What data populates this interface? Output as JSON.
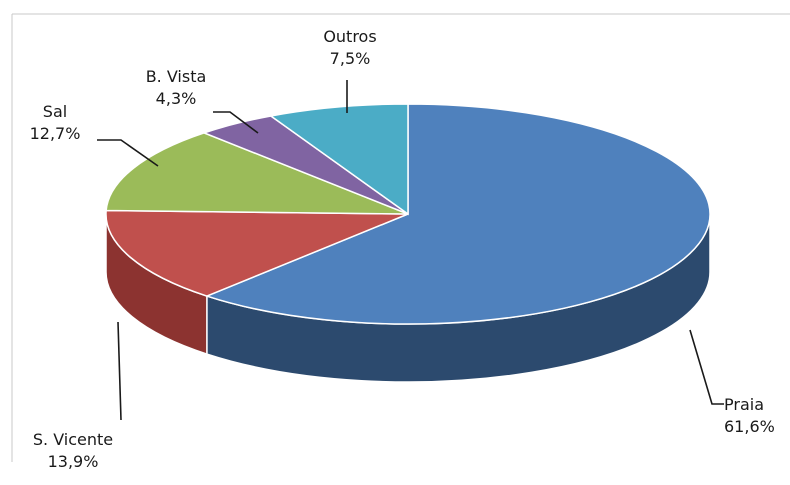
{
  "chart_data": {
    "type": "pie",
    "title": "",
    "slices": [
      {
        "label": "Praia",
        "value_label": "61,6%",
        "value": 61.6,
        "color": "#4f81bd",
        "side_color": "#2c4a6e"
      },
      {
        "label": "S. Vicente",
        "value_label": "13,9%",
        "value": 13.9,
        "color": "#c0504d",
        "side_color": "#8c3330"
      },
      {
        "label": "Sal",
        "value_label": "12,7%",
        "value": 12.7,
        "color": "#9bbb59",
        "side_color": "#6f8a3a"
      },
      {
        "label": "B. Vista",
        "value_label": "4,3%",
        "value": 4.3,
        "color": "#8064a2",
        "side_color": "#5a4474"
      },
      {
        "label": "Outros",
        "value_label": "7,5%",
        "value": 7.5,
        "color": "#4bacc6",
        "side_color": "#2f7d92"
      }
    ],
    "style": "3d",
    "legend": "none"
  }
}
